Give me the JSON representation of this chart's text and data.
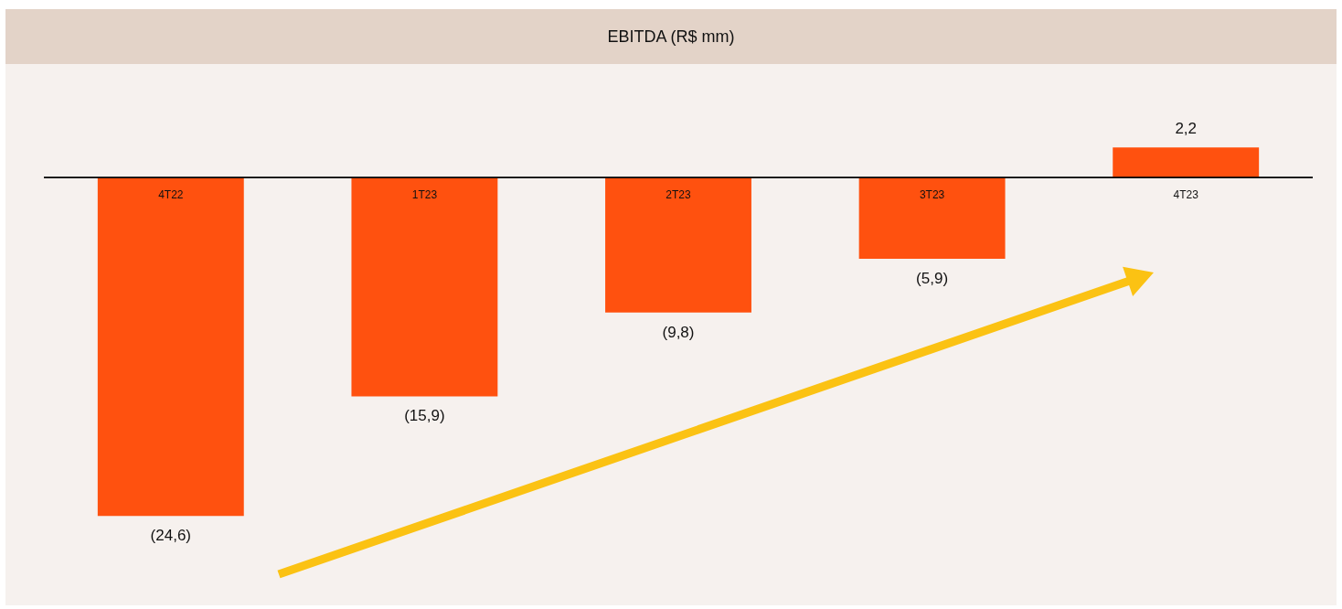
{
  "chart_data": {
    "type": "bar",
    "title": "EBITDA (R$ mm)",
    "categories": [
      "4T22",
      "1T23",
      "2T23",
      "3T23",
      "4T23"
    ],
    "values": [
      -24.6,
      -15.9,
      -9.8,
      -5.9,
      2.2
    ],
    "value_labels": [
      "(24,6)",
      "(15,9)",
      "(9,8)",
      "(5,9)",
      "2,2"
    ],
    "color": "#ff510f"
  }
}
